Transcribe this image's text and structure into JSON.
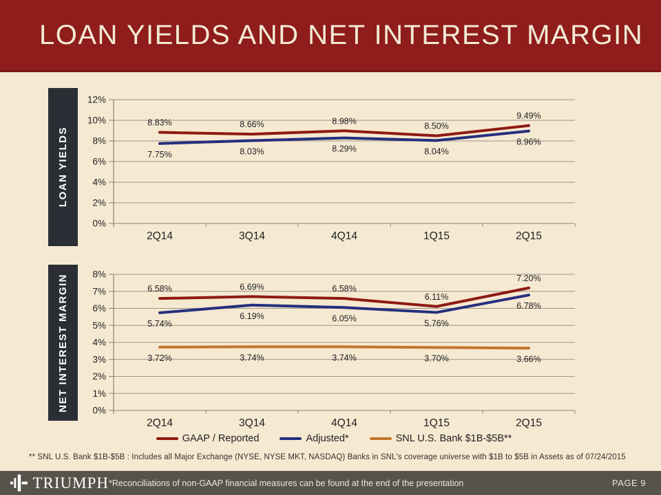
{
  "page": {
    "title": "LOAN YIELDS AND NET INTEREST MARGIN",
    "footnote": "**  SNL U.S. Bank $1B-$5B : Includes all Major Exchange (NYSE, NYSE MKT, NASDAQ) Banks in SNL's coverage universe with $1B to $5B in Assets as of 07/24/2015",
    "footer": {
      "logo_text": "TRIUMPH",
      "note": "*Reconciliations of non-GAAP financial measures can be found at the end of the presentation",
      "page_label": "PAGE 9"
    }
  },
  "colors": {
    "header_red": "#8E1D1B",
    "background": "#F6E9D2",
    "label_box": "#2B2E34",
    "footer_bar": "#56534B",
    "gaap": "#8D1B12",
    "adjusted": "#252F7D",
    "snl": "#C1762F",
    "grid": "#9C9489",
    "axis": "#8C8478",
    "data_label": "#1F1F1F"
  },
  "legend": [
    {
      "label": "GAAP / Reported",
      "color": "#8D1B12"
    },
    {
      "label": "Adjusted*",
      "color": "#252F7D"
    },
    {
      "label": "SNL U.S. Bank $1B-$5B**",
      "color": "#C1762F"
    }
  ],
  "chart_data": [
    {
      "type": "line",
      "title": "LOAN YIELDS",
      "categories": [
        "2Q14",
        "3Q14",
        "4Q14",
        "1Q15",
        "2Q15"
      ],
      "series": [
        {
          "name": "GAAP / Reported",
          "color": "#8D1B12",
          "label_position": "above",
          "values": [
            8.83,
            8.66,
            8.98,
            8.5,
            9.49
          ]
        },
        {
          "name": "Adjusted*",
          "color": "#252F7D",
          "label_position": "below",
          "values": [
            7.75,
            8.03,
            8.29,
            8.04,
            8.96
          ]
        }
      ],
      "xlabel": "",
      "ylabel": "",
      "ylim": [
        0,
        12
      ],
      "ytick_step": 2,
      "ytick_suffix": "%",
      "grid": true,
      "legend_position": "shared-bottom"
    },
    {
      "type": "line",
      "title": "NET INTEREST MARGIN",
      "categories": [
        "2Q14",
        "3Q14",
        "4Q14",
        "1Q15",
        "2Q15"
      ],
      "series": [
        {
          "name": "GAAP / Reported",
          "color": "#8D1B12",
          "label_position": "above",
          "values": [
            6.58,
            6.69,
            6.58,
            6.11,
            7.2
          ]
        },
        {
          "name": "Adjusted*",
          "color": "#252F7D",
          "label_position": "below",
          "values": [
            5.74,
            6.19,
            6.05,
            5.76,
            6.78
          ]
        },
        {
          "name": "SNL U.S. Bank $1B-$5B**",
          "color": "#C1762F",
          "label_position": "below",
          "values": [
            3.72,
            3.74,
            3.74,
            3.7,
            3.66
          ]
        }
      ],
      "xlabel": "",
      "ylabel": "",
      "ylim": [
        0,
        8
      ],
      "ytick_step": 1,
      "ytick_suffix": "%",
      "grid": true,
      "legend_position": "shared-bottom"
    }
  ]
}
